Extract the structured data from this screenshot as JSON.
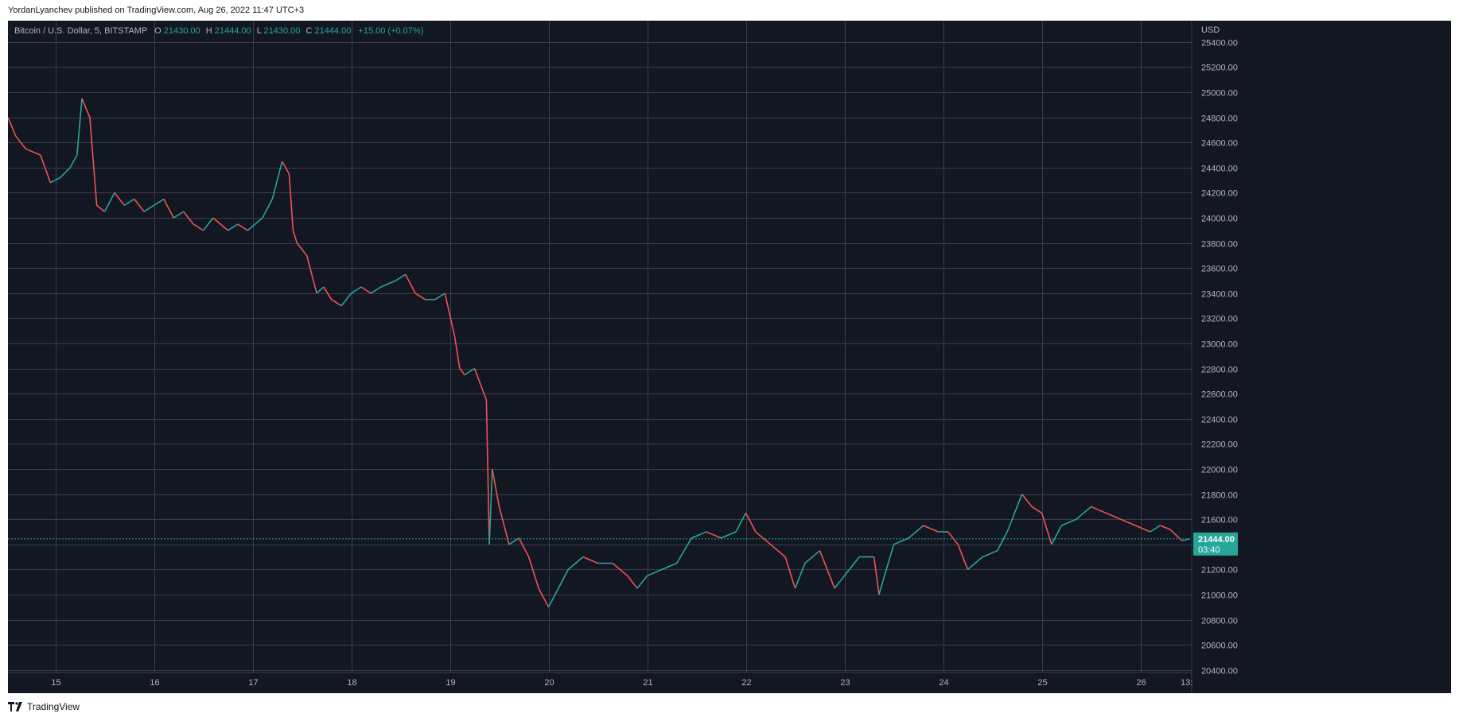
{
  "header": {
    "published_line": "YordanLyanchev published on TradingView.com, Aug 26, 2022 11:47 UTC+3"
  },
  "legend": {
    "symbol": "Bitcoin / U.S. Dollar, 5, BITSTAMP",
    "o_label": "O",
    "o_value": "21430.00",
    "h_label": "H",
    "h_value": "21444.00",
    "l_label": "L",
    "l_value": "21430.00",
    "c_label": "C",
    "c_value": "21444.00",
    "change": "+15.00 (+0.07%)"
  },
  "price_axis": {
    "currency": "USD",
    "last_price": "21444.00",
    "countdown": "03:40"
  },
  "time_axis": {
    "truncated_label": "13:"
  },
  "footer": {
    "brand": "TradingView",
    "logo_icon": "tradingview-logo-icon"
  },
  "colors": {
    "background": "#131722",
    "grid": "#3a3e4a",
    "up": "#26a69a",
    "down": "#ef5350",
    "axis_text": "#b2b5be",
    "last_price_badge": "#26a69a"
  },
  "chart_data": {
    "type": "line",
    "title": "Bitcoin / U.S. Dollar, 5, BITSTAMP",
    "xlabel": "",
    "ylabel": "USD",
    "x_ticks": [
      "15",
      "16",
      "17",
      "18",
      "19",
      "20",
      "21",
      "22",
      "23",
      "24",
      "25",
      "26"
    ],
    "x_tick_values": [
      15,
      16,
      17,
      18,
      19,
      20,
      21,
      22,
      23,
      24,
      25,
      26
    ],
    "xlim": [
      14.52,
      26.52
    ],
    "y_ticks": [
      20400,
      20600,
      20800,
      21000,
      21200,
      21400,
      21600,
      21800,
      22000,
      22200,
      22400,
      22600,
      22800,
      23000,
      23200,
      23400,
      23600,
      23800,
      24000,
      24200,
      24400,
      24600,
      24800,
      25000,
      25200,
      25400
    ],
    "ylim": [
      20380,
      25570
    ],
    "grid": true,
    "last_price": 21444,
    "series": [
      {
        "name": "BTCUSD",
        "x": [
          14.52,
          14.6,
          14.7,
          14.85,
          14.95,
          15.05,
          15.15,
          15.22,
          15.27,
          15.35,
          15.42,
          15.5,
          15.6,
          15.7,
          15.8,
          15.9,
          16.0,
          16.1,
          16.2,
          16.3,
          16.4,
          16.5,
          16.6,
          16.75,
          16.85,
          16.95,
          17.1,
          17.2,
          17.3,
          17.37,
          17.41,
          17.45,
          17.55,
          17.65,
          17.72,
          17.8,
          17.9,
          18.0,
          18.1,
          18.2,
          18.3,
          18.45,
          18.55,
          18.65,
          18.75,
          18.85,
          18.95,
          19.05,
          19.1,
          19.15,
          19.25,
          19.37,
          19.4,
          19.43,
          19.5,
          19.6,
          19.7,
          19.8,
          19.9,
          20.0,
          20.1,
          20.2,
          20.35,
          20.5,
          20.65,
          20.8,
          20.9,
          21.0,
          21.15,
          21.3,
          21.45,
          21.6,
          21.75,
          21.9,
          22.0,
          22.1,
          22.25,
          22.4,
          22.5,
          22.6,
          22.75,
          22.9,
          23.0,
          23.15,
          23.3,
          23.35,
          23.5,
          23.65,
          23.8,
          23.95,
          24.05,
          24.15,
          24.25,
          24.4,
          24.55,
          24.65,
          24.8,
          24.9,
          25.0,
          25.1,
          25.2,
          25.35,
          25.5,
          25.65,
          25.8,
          25.95,
          26.1,
          26.2,
          26.3,
          26.42,
          26.5
        ],
        "values": [
          24800,
          24650,
          24550,
          24500,
          24280,
          24320,
          24400,
          24500,
          24950,
          24800,
          24100,
          24050,
          24200,
          24100,
          24150,
          24050,
          24100,
          24150,
          24000,
          24050,
          23950,
          23900,
          24000,
          23900,
          23950,
          23900,
          24000,
          24150,
          24450,
          24350,
          23900,
          23800,
          23700,
          23400,
          23450,
          23350,
          23300,
          23400,
          23450,
          23400,
          23450,
          23500,
          23550,
          23400,
          23350,
          23350,
          23400,
          23050,
          22800,
          22750,
          22800,
          22550,
          21400,
          22000,
          21700,
          21400,
          21450,
          21300,
          21050,
          20900,
          21050,
          21200,
          21300,
          21250,
          21250,
          21150,
          21050,
          21150,
          21200,
          21250,
          21450,
          21500,
          21450,
          21500,
          21650,
          21500,
          21400,
          21300,
          21050,
          21250,
          21350,
          21050,
          21150,
          21300,
          21300,
          21000,
          21400,
          21450,
          21550,
          21500,
          21500,
          21400,
          21200,
          21300,
          21350,
          21500,
          21800,
          21700,
          21650,
          21400,
          21550,
          21600,
          21700,
          21650,
          21600,
          21550,
          21500,
          21550,
          21520,
          21430,
          21444
        ]
      }
    ]
  }
}
